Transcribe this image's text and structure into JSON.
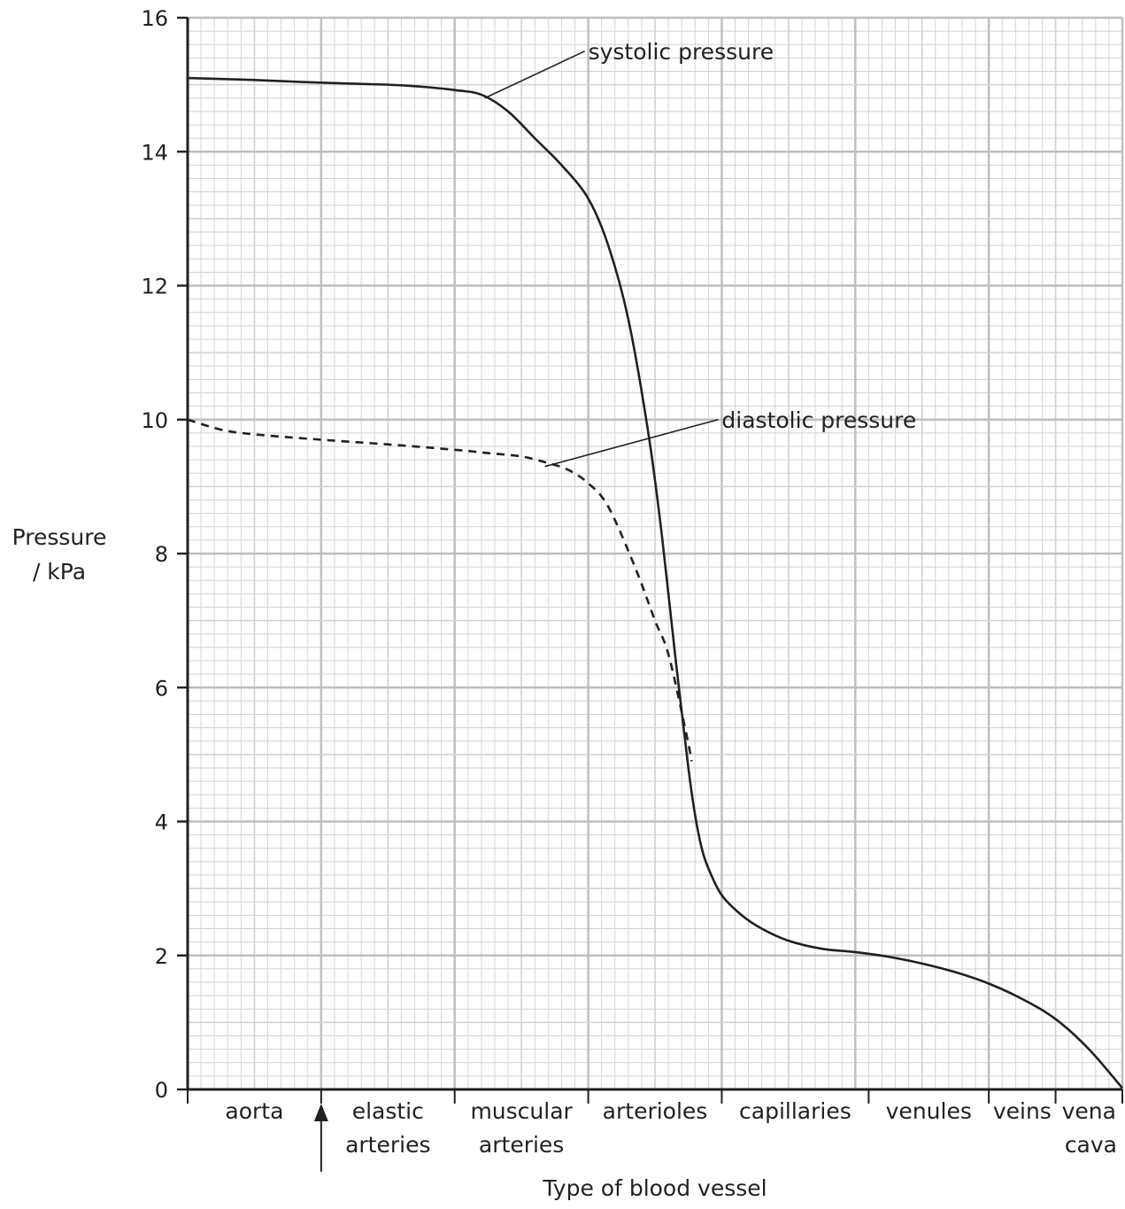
{
  "chart_data": {
    "type": "line",
    "title": "",
    "xlabel": "Type of blood vessel",
    "ylabel_lines": [
      "Pressure",
      "/ kPa"
    ],
    "ylim": [
      0,
      16
    ],
    "xlim": [
      0,
      14
    ],
    "yticks": [
      0,
      2,
      4,
      6,
      8,
      10,
      12,
      14,
      16
    ],
    "grid": true,
    "categories": [
      {
        "lines": [
          "aorta"
        ],
        "start": 0,
        "end": 2
      },
      {
        "lines": [
          "elastic",
          "arteries"
        ],
        "start": 2,
        "end": 4
      },
      {
        "lines": [
          "muscular",
          "arteries"
        ],
        "start": 4,
        "end": 6
      },
      {
        "lines": [
          "arterioles"
        ],
        "start": 6,
        "end": 8
      },
      {
        "lines": [
          "capillaries"
        ],
        "start": 8,
        "end": 10.2
      },
      {
        "lines": [
          "venules"
        ],
        "start": 10.2,
        "end": 12
      },
      {
        "lines": [
          "veins"
        ],
        "start": 12,
        "end": 13
      },
      {
        "lines": [
          "vena",
          "cava"
        ],
        "start": 13,
        "end": 14
      }
    ],
    "series": [
      {
        "name": "systolic pressure",
        "style": "solid",
        "x": [
          0,
          1,
          2,
          3,
          3.5,
          4,
          4.4,
          4.8,
          5.2,
          5.6,
          6,
          6.3,
          6.6,
          6.9,
          7.1,
          7.3,
          7.5,
          7.6,
          7.7,
          7.8,
          8,
          8.3,
          8.6,
          9,
          9.5,
          10,
          10.5,
          11,
          11.5,
          12,
          12.5,
          13,
          13.5,
          14
        ],
        "y": [
          15.1,
          15.07,
          15.03,
          15.0,
          14.97,
          14.92,
          14.85,
          14.6,
          14.2,
          13.8,
          13.3,
          12.6,
          11.5,
          9.8,
          8.3,
          6.5,
          4.8,
          4.1,
          3.6,
          3.3,
          2.9,
          2.6,
          2.4,
          2.22,
          2.1,
          2.05,
          1.98,
          1.88,
          1.75,
          1.58,
          1.35,
          1.05,
          0.6,
          0.02
        ]
      },
      {
        "name": "diastolic pressure",
        "style": "dashed",
        "x": [
          0,
          0.5,
          1,
          2,
          3,
          4,
          4.5,
          5,
          5.4,
          5.7,
          6,
          6.3,
          6.7,
          7,
          7.2,
          7.45,
          7.55
        ],
        "y": [
          10.0,
          9.85,
          9.78,
          9.7,
          9.63,
          9.55,
          9.5,
          9.45,
          9.35,
          9.25,
          9.05,
          8.7,
          7.8,
          7.0,
          6.5,
          5.4,
          4.9
        ]
      }
    ],
    "annotations": [
      {
        "text": "systolic pressure",
        "target": [
          4.45,
          14.8
        ],
        "label_at": [
          6.0,
          15.5
        ]
      },
      {
        "text": "diastolic pressure",
        "target": [
          5.35,
          9.3
        ],
        "label_at": [
          8.0,
          10.0
        ]
      }
    ],
    "arrow_marker": {
      "x": 2
    }
  }
}
